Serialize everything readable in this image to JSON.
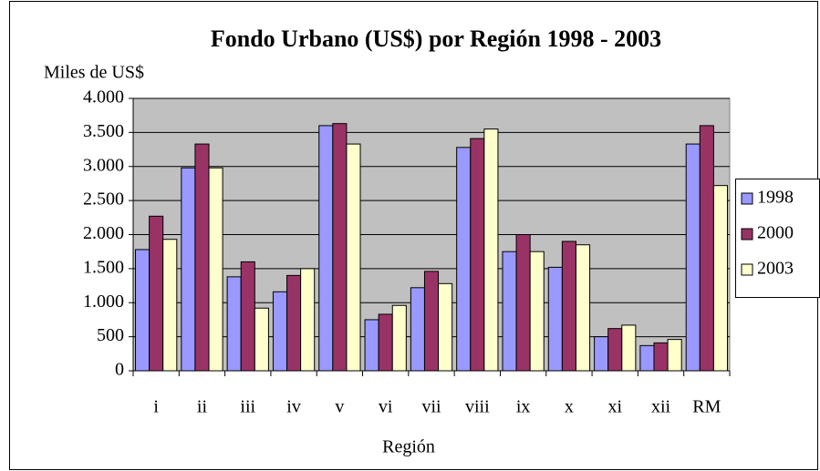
{
  "chart_data": {
    "type": "bar",
    "title": "Fondo Urbano (US$) por Región 1998 - 2003",
    "y_label": "Miles de US$",
    "x_label": "Región",
    "categories": [
      "i",
      "ii",
      "iii",
      "iv",
      "v",
      "vi",
      "vii",
      "viii",
      "ix",
      "x",
      "xi",
      "xii",
      "RM"
    ],
    "series": [
      {
        "name": "1998",
        "color": "#9999ff",
        "values": [
          1780,
          2980,
          1380,
          1160,
          3600,
          750,
          1220,
          3280,
          1750,
          1520,
          500,
          370,
          3330
        ]
      },
      {
        "name": "2000",
        "color": "#993366",
        "values": [
          2270,
          3330,
          1600,
          1400,
          3630,
          830,
          1460,
          3410,
          2000,
          1900,
          620,
          410,
          3600
        ]
      },
      {
        "name": "2003",
        "color": "#ffffcc",
        "values": [
          1930,
          2980,
          920,
          1500,
          3330,
          960,
          1280,
          3550,
          1750,
          1850,
          670,
          460,
          2720
        ]
      }
    ],
    "ylim": [
      0,
      4000
    ],
    "yticks": [
      0,
      500,
      {
        "value": 1000,
        "label": "1.000"
      },
      {
        "value": 1500,
        "label": "1.500"
      },
      {
        "value": 2000,
        "label": "2.000"
      },
      {
        "value": 2500,
        "label": "2.500"
      },
      {
        "value": 3000,
        "label": "3.000"
      },
      {
        "value": 3500,
        "label": "3.500"
      },
      {
        "value": 4000,
        "label": "4.000"
      }
    ],
    "grid": true,
    "legend": "right"
  }
}
